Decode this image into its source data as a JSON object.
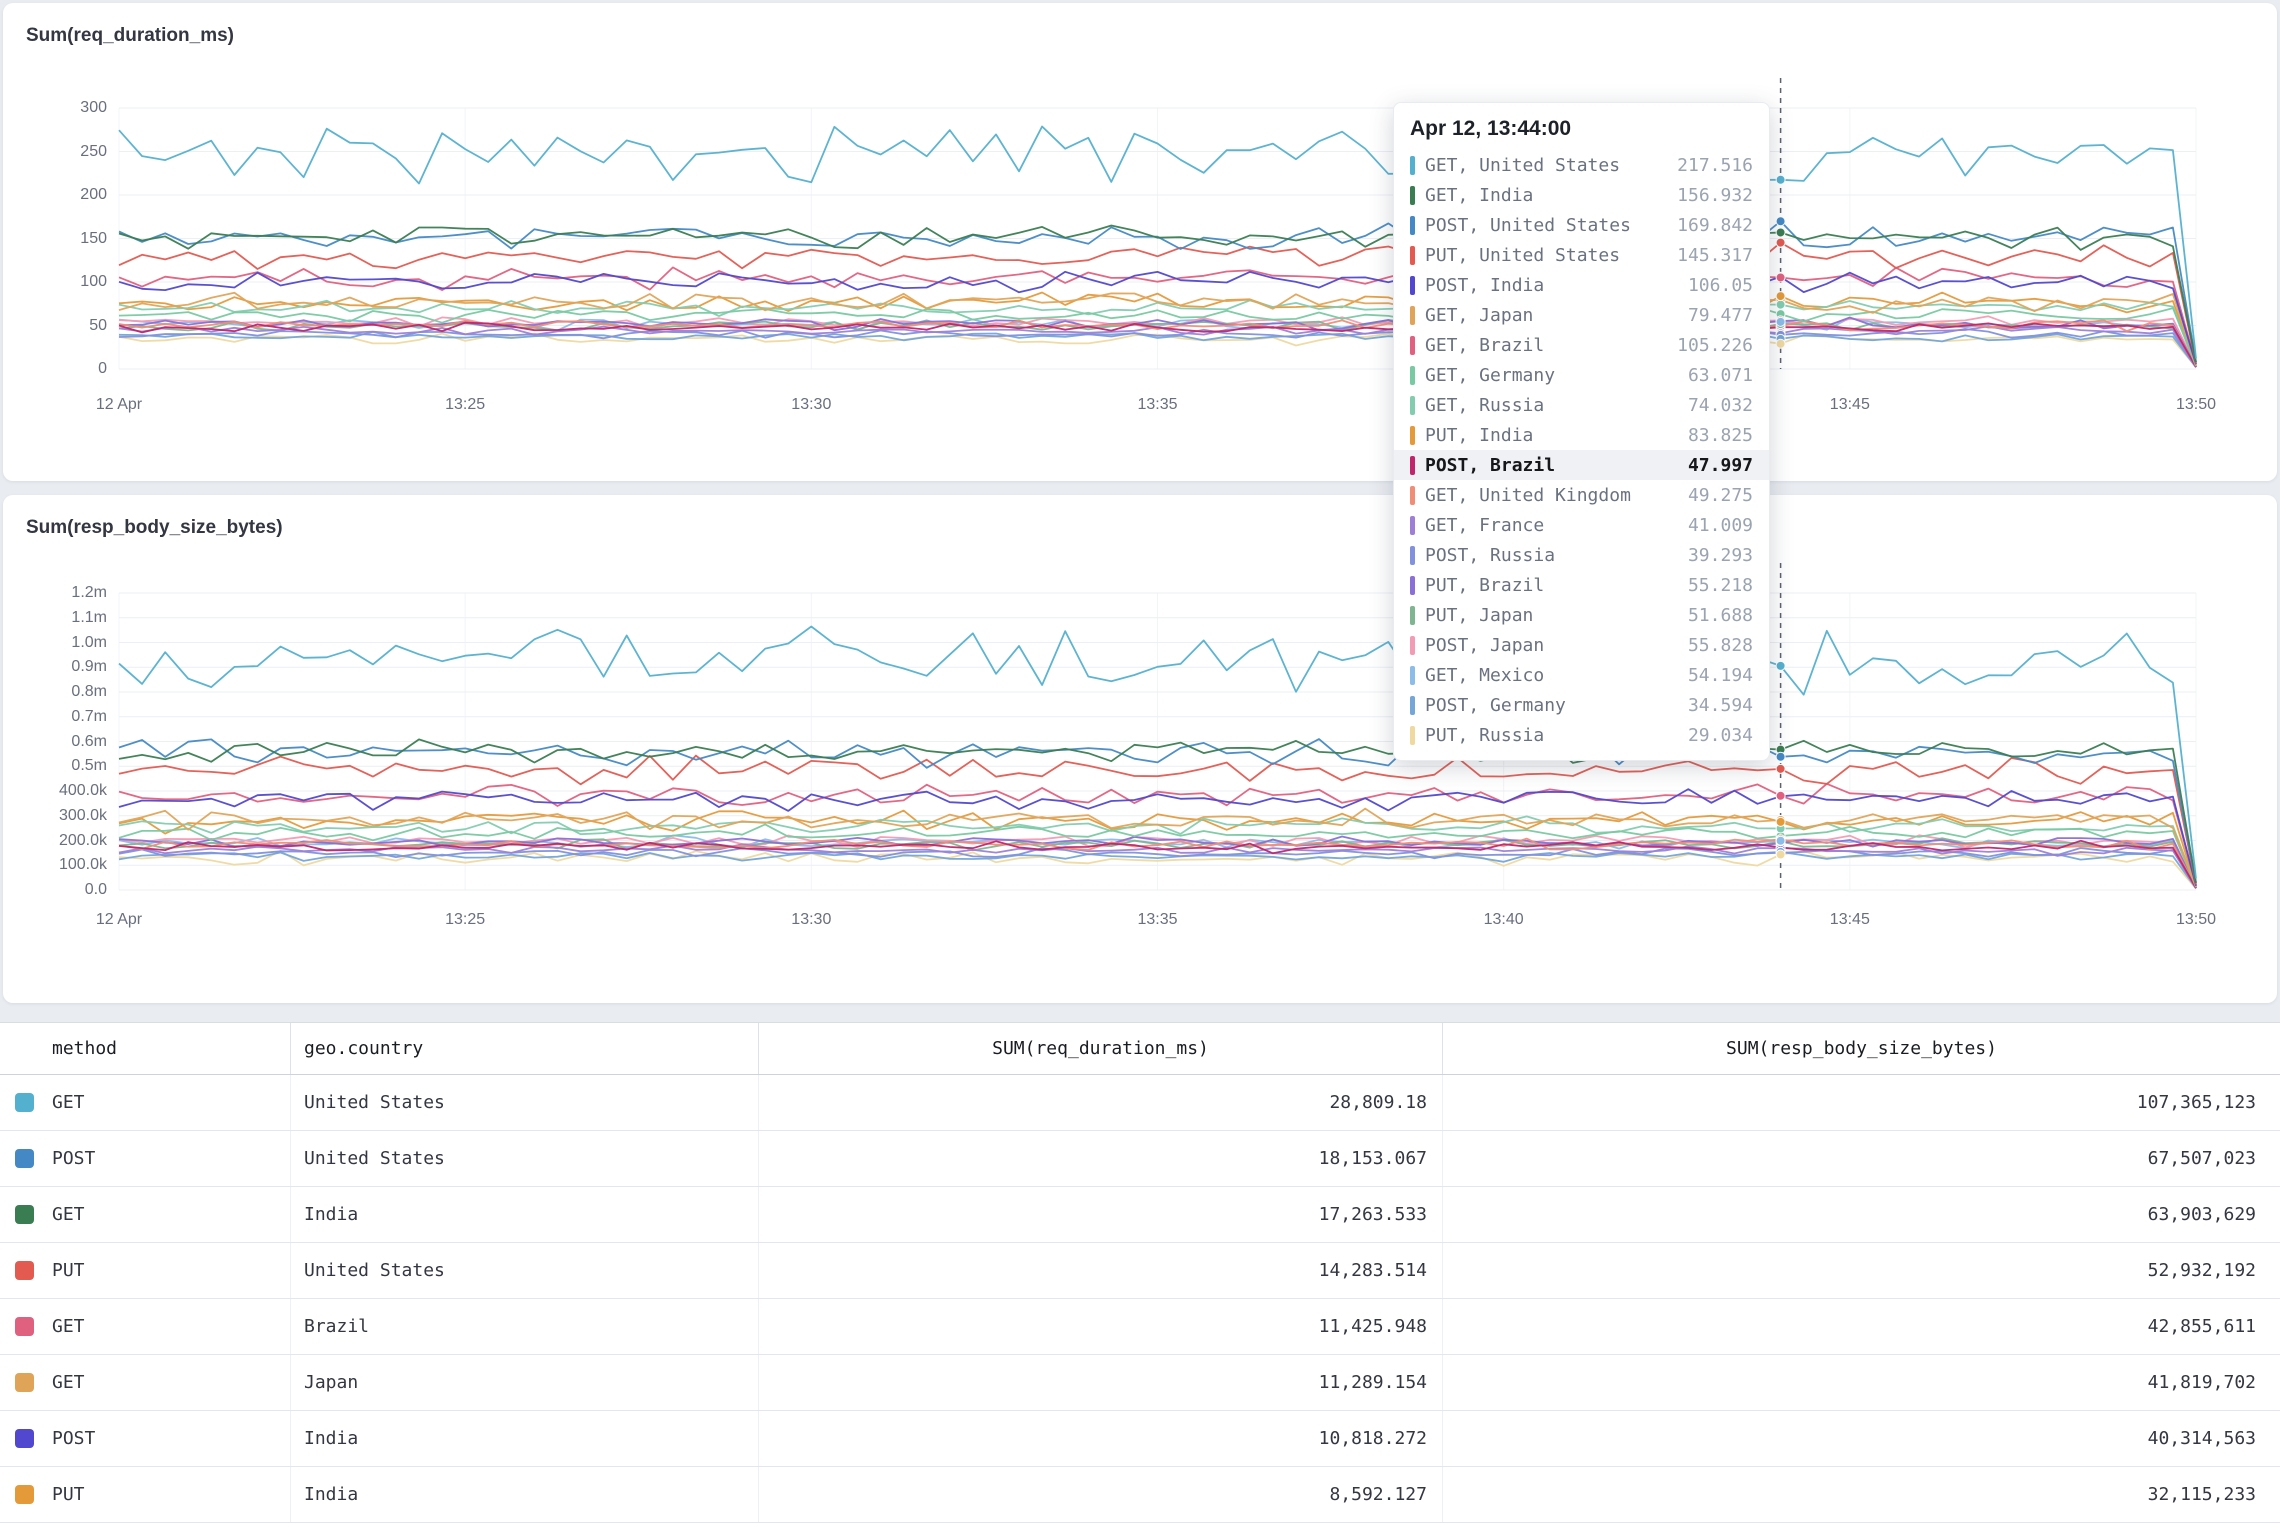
{
  "chart_data": [
    {
      "type": "line",
      "title": "Sum(req_duration_ms)",
      "x_ticks": [
        "12 Apr",
        "13:25",
        "13:30",
        "13:35",
        "13:40",
        "13:45",
        "13:50"
      ],
      "y_ticks": [
        "300",
        "250",
        "200",
        "150",
        "100",
        "50",
        "0"
      ],
      "y_max": 300,
      "x_range": [
        "13:20",
        "13:50"
      ],
      "grid": true,
      "cursor_time": "13:44",
      "series": [
        {
          "name": "GET, United States",
          "color": "#54b0cf",
          "mean": 250,
          "amp": 45,
          "cursor_value": 217.516
        },
        {
          "name": "GET, India",
          "color": "#3a7d52",
          "mean": 152,
          "amp": 18,
          "cursor_value": 156.932
        },
        {
          "name": "POST, United States",
          "color": "#4489c5",
          "mean": 150,
          "amp": 20,
          "cursor_value": 169.842
        },
        {
          "name": "PUT, United States",
          "color": "#e25a50",
          "mean": 130,
          "amp": 22,
          "cursor_value": 145.317
        },
        {
          "name": "POST, India",
          "color": "#5148cf",
          "mean": 100,
          "amp": 18,
          "cursor_value": 106.05
        },
        {
          "name": "GET, Japan",
          "color": "#e0a458",
          "mean": 76,
          "amp": 15,
          "cursor_value": 79.477
        },
        {
          "name": "GET, Brazil",
          "color": "#e0607f",
          "mean": 104,
          "amp": 17,
          "cursor_value": 105.226
        },
        {
          "name": "GET, Germany",
          "color": "#79c9a2",
          "mean": 62,
          "amp": 11,
          "cursor_value": 63.071
        },
        {
          "name": "GET, Russia",
          "color": "#83ccb0",
          "mean": 70,
          "amp": 12,
          "cursor_value": 74.032
        },
        {
          "name": "PUT, India",
          "color": "#e59a3a",
          "mean": 76,
          "amp": 16,
          "cursor_value": 83.825
        },
        {
          "name": "POST, Brazil",
          "color": "#c0256c",
          "mean": 47,
          "amp": 8,
          "cursor_value": 47.997
        },
        {
          "name": "GET, United Kingdom",
          "color": "#f08d76",
          "mean": 50,
          "amp": 8,
          "cursor_value": 49.275
        },
        {
          "name": "GET, France",
          "color": "#9d7fd6",
          "mean": 44,
          "amp": 7,
          "cursor_value": 41.009
        },
        {
          "name": "POST, Russia",
          "color": "#8191dd",
          "mean": 40,
          "amp": 7,
          "cursor_value": 39.293
        },
        {
          "name": "PUT, Brazil",
          "color": "#8a6fd6",
          "mean": 52,
          "amp": 9,
          "cursor_value": 55.218
        },
        {
          "name": "PUT, Japan",
          "color": "#7fb591",
          "mean": 50,
          "amp": 8,
          "cursor_value": 51.688
        },
        {
          "name": "POST, Japan",
          "color": "#f29bb4",
          "mean": 54,
          "amp": 9,
          "cursor_value": 55.828
        },
        {
          "name": "GET, Mexico",
          "color": "#8cbce8",
          "mean": 52,
          "amp": 9,
          "cursor_value": 54.194
        },
        {
          "name": "POST, Germany",
          "color": "#74a7d8",
          "mean": 37,
          "amp": 7,
          "cursor_value": 34.594
        },
        {
          "name": "PUT, Russia",
          "color": "#efd9a0",
          "mean": 35,
          "amp": 10,
          "cursor_value": 29.034
        }
      ]
    },
    {
      "type": "line",
      "title": "Sum(resp_body_size_bytes)",
      "x_ticks": [
        "12 Apr",
        "13:25",
        "13:30",
        "13:35",
        "13:40",
        "13:45",
        "13:50"
      ],
      "y_ticks": [
        "1.2m",
        "1.1m",
        "1.0m",
        "0.9m",
        "0.8m",
        "0.7m",
        "0.6m",
        "0.5m",
        "400.0k",
        "300.0k",
        "200.0k",
        "100.0k",
        "0.0"
      ],
      "y_max": 1200000,
      "x_range": [
        "13:20",
        "13:50"
      ],
      "grid": true,
      "bytes_per_ms_scale": 3700
    }
  ],
  "tooltip": {
    "title": "Apr 12, 13:44:00",
    "highlighted_label": "POST, Brazil",
    "rows": [
      {
        "label": "GET, United States",
        "value": "217.516"
      },
      {
        "label": "GET, India",
        "value": "156.932"
      },
      {
        "label": "POST, United States",
        "value": "169.842"
      },
      {
        "label": "PUT, United States",
        "value": "145.317"
      },
      {
        "label": "POST, India",
        "value": "106.05"
      },
      {
        "label": "GET, Japan",
        "value": "79.477"
      },
      {
        "label": "GET, Brazil",
        "value": "105.226"
      },
      {
        "label": "GET, Germany",
        "value": "63.071"
      },
      {
        "label": "GET, Russia",
        "value": "74.032"
      },
      {
        "label": "PUT, India",
        "value": "83.825"
      },
      {
        "label": "POST, Brazil",
        "value": "47.997"
      },
      {
        "label": "GET, United Kingdom",
        "value": "49.275"
      },
      {
        "label": "GET, France",
        "value": "41.009"
      },
      {
        "label": "POST, Russia",
        "value": "39.293"
      },
      {
        "label": "PUT, Brazil",
        "value": "55.218"
      },
      {
        "label": "PUT, Japan",
        "value": "51.688"
      },
      {
        "label": "POST, Japan",
        "value": "55.828"
      },
      {
        "label": "GET, Mexico",
        "value": "54.194"
      },
      {
        "label": "POST, Germany",
        "value": "34.594"
      },
      {
        "label": "PUT, Russia",
        "value": "29.034"
      }
    ]
  },
  "table": {
    "columns": [
      "method",
      "geo.country",
      "SUM(req_duration_ms)",
      "SUM(resp_body_size_bytes)"
    ],
    "rows": [
      {
        "color": "#54b0cf",
        "method": "GET",
        "country": "United States",
        "duration": "28,809.18",
        "bytes": "107,365,123"
      },
      {
        "color": "#4489c5",
        "method": "POST",
        "country": "United States",
        "duration": "18,153.067",
        "bytes": "67,507,023"
      },
      {
        "color": "#3a7d52",
        "method": "GET",
        "country": "India",
        "duration": "17,263.533",
        "bytes": "63,903,629"
      },
      {
        "color": "#e25a50",
        "method": "PUT",
        "country": "United States",
        "duration": "14,283.514",
        "bytes": "52,932,192"
      },
      {
        "color": "#e0607f",
        "method": "GET",
        "country": "Brazil",
        "duration": "11,425.948",
        "bytes": "42,855,611"
      },
      {
        "color": "#e0a458",
        "method": "GET",
        "country": "Japan",
        "duration": "11,289.154",
        "bytes": "41,819,702"
      },
      {
        "color": "#5148cf",
        "method": "POST",
        "country": "India",
        "duration": "10,818.272",
        "bytes": "40,314,563"
      },
      {
        "color": "#e59a3a",
        "method": "PUT",
        "country": "India",
        "duration": "8,592.127",
        "bytes": "32,115,233"
      }
    ]
  }
}
